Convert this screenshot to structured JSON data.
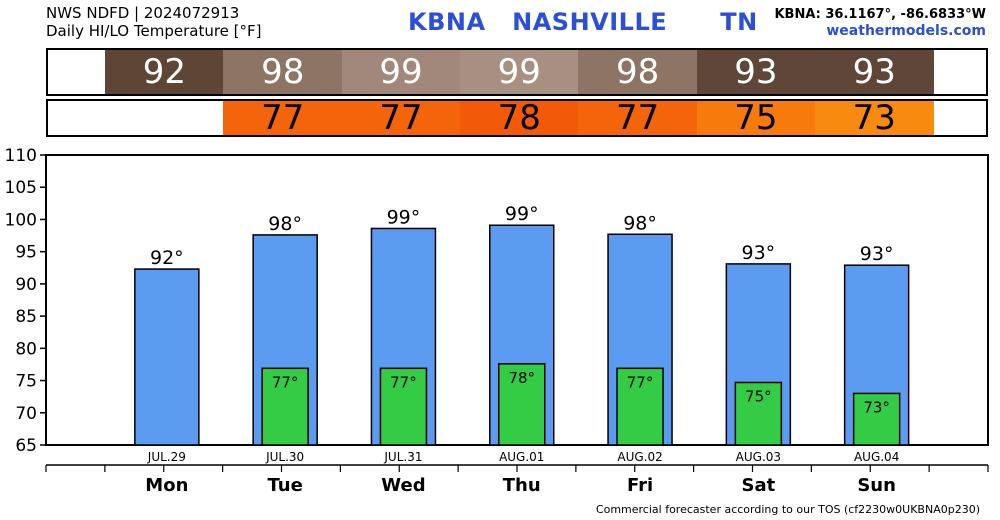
{
  "header": {
    "line1": "NWS NDFD | 2024072913",
    "line2": "Daily HI/LO Temperature [°F]",
    "station": "KBNA   NASHVILLE      TN",
    "coords": "KBNA: 36.1167°, -86.6833°W",
    "site": "weathermodels.com"
  },
  "footer": "Commercial forecaster according to our TOS (cf2230w0UKBNA0p230)",
  "hi_strip": [
    {
      "text": "92",
      "color": "#5f4536"
    },
    {
      "text": "98",
      "color": "#8e7464"
    },
    {
      "text": "99",
      "color": "#a2887a"
    },
    {
      "text": "99",
      "color": "#a78f81"
    },
    {
      "text": "98",
      "color": "#8e7464"
    },
    {
      "text": "93",
      "color": "#604638"
    },
    {
      "text": "93",
      "color": "#604638"
    }
  ],
  "lo_strip": [
    {
      "text": "",
      "color": "#ffffff"
    },
    {
      "text": "77",
      "color": "#f4640a"
    },
    {
      "text": "77",
      "color": "#f4640a"
    },
    {
      "text": "78",
      "color": "#f25a08"
    },
    {
      "text": "77",
      "color": "#f4640a"
    },
    {
      "text": "75",
      "color": "#f77a0d"
    },
    {
      "text": "73",
      "color": "#f98a10"
    }
  ],
  "chart_data": {
    "type": "bar",
    "categories": [
      "Mon",
      "Tue",
      "Wed",
      "Thu",
      "Fri",
      "Sat",
      "Sun"
    ],
    "dates": [
      "JUL.29",
      "JUL.30",
      "JUL.31",
      "AUG.01",
      "AUG.02",
      "AUG.03",
      "AUG.04"
    ],
    "series": [
      {
        "values": [
          92.3,
          97.6,
          98.6,
          99.1,
          97.7,
          93.1,
          92.9
        ],
        "labels": [
          "92°",
          "98°",
          "99°",
          "99°",
          "98°",
          "93°",
          "93°"
        ],
        "color": "#5b9cf0"
      },
      {
        "values": [
          null,
          76.9,
          76.9,
          77.6,
          76.9,
          74.7,
          73.0
        ],
        "labels": [
          "",
          "77°",
          "77°",
          "78°",
          "77°",
          "75°",
          "73°"
        ],
        "color": "#33cc44"
      }
    ],
    "yticks": [
      "110",
      "105",
      "100",
      "95",
      "90",
      "85",
      "80",
      "75",
      "70",
      "65"
    ],
    "ylim": [
      65,
      110
    ]
  }
}
